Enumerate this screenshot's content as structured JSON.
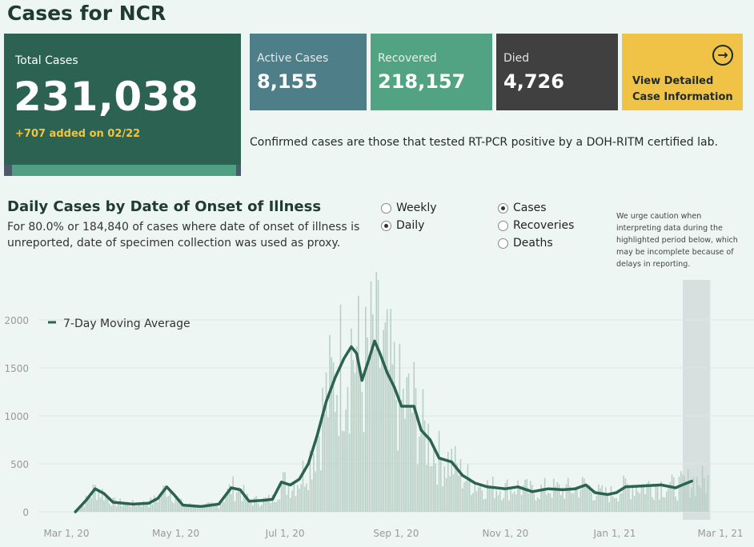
{
  "header": {
    "title": "Cases for NCR"
  },
  "total": {
    "label": "Total Cases",
    "value": "231,038",
    "added": "+707 added on 02/22"
  },
  "stats": {
    "active": {
      "label": "Active Cases",
      "value": "8,155"
    },
    "recovered": {
      "label": "Recovered",
      "value": "218,157"
    },
    "died": {
      "label": "Died",
      "value": "4,726"
    }
  },
  "detail_button": {
    "line1": "View Detailed",
    "line2": "Case Information",
    "icon": "arrow-right-circle-icon"
  },
  "note": "Confirmed cases are those that tested RT-PCR positive by a DOH-RITM certified lab.",
  "section": {
    "title": "Daily Cases by Date of Onset of Illness",
    "subtitle": "For 80.0% or 184,840 of cases where date of onset of illness is unreported, date of specimen collection was used as proxy."
  },
  "period_options": [
    {
      "label": "Weekly",
      "selected": false
    },
    {
      "label": "Daily",
      "selected": true
    }
  ],
  "metric_options": [
    {
      "label": "Cases",
      "selected": true
    },
    {
      "label": "Recoveries",
      "selected": false
    },
    {
      "label": "Deaths",
      "selected": false
    }
  ],
  "caution": "We urge caution when interpreting data during the highlighted period below, which may be incomplete because of delays in reporting.",
  "colors": {
    "bar": "#b9cfc6",
    "line": "#2b6251",
    "highlight": "#d6e0de"
  },
  "chart_data": {
    "type": "bar",
    "x_start": "2020-03-01",
    "x_end": "2021-02-22",
    "ylim": [
      0,
      2400
    ],
    "yticks": [
      0,
      500,
      1000,
      1500,
      2000
    ],
    "ytick_labels": [
      "0",
      "500",
      "1000",
      "1500",
      "2000"
    ],
    "xtick_labels": [
      "Mar 1, 20",
      "May 1, 20",
      "Jul 1, 20",
      "Sep 1, 20",
      "Nov 1, 20",
      "Jan 1, 21",
      "Mar 1, 21"
    ],
    "xtick_dates": [
      "2020-03-01",
      "2020-05-01",
      "2020-07-01",
      "2020-09-01",
      "2020-11-01",
      "2021-01-01",
      "2021-03-01"
    ],
    "legend": {
      "label": "7-Day Moving Average",
      "position": "top-left"
    },
    "highlight_range": [
      "2021-02-08",
      "2021-02-22"
    ],
    "grid": true,
    "moving_average": [
      {
        "date": "2020-03-06",
        "value": 0
      },
      {
        "date": "2020-03-12",
        "value": 120
      },
      {
        "date": "2020-03-17",
        "value": 240
      },
      {
        "date": "2020-03-22",
        "value": 190
      },
      {
        "date": "2020-03-27",
        "value": 100
      },
      {
        "date": "2020-04-07",
        "value": 80
      },
      {
        "date": "2020-04-16",
        "value": 90
      },
      {
        "date": "2020-04-21",
        "value": 140
      },
      {
        "date": "2020-04-26",
        "value": 260
      },
      {
        "date": "2020-04-30",
        "value": 180
      },
      {
        "date": "2020-05-05",
        "value": 70
      },
      {
        "date": "2020-05-15",
        "value": 55
      },
      {
        "date": "2020-05-25",
        "value": 80
      },
      {
        "date": "2020-06-01",
        "value": 250
      },
      {
        "date": "2020-06-06",
        "value": 230
      },
      {
        "date": "2020-06-11",
        "value": 110
      },
      {
        "date": "2020-06-19",
        "value": 120
      },
      {
        "date": "2020-06-24",
        "value": 130
      },
      {
        "date": "2020-06-29",
        "value": 310
      },
      {
        "date": "2020-07-04",
        "value": 280
      },
      {
        "date": "2020-07-09",
        "value": 340
      },
      {
        "date": "2020-07-14",
        "value": 500
      },
      {
        "date": "2020-07-19",
        "value": 800
      },
      {
        "date": "2020-07-24",
        "value": 1150
      },
      {
        "date": "2020-07-29",
        "value": 1400
      },
      {
        "date": "2020-08-03",
        "value": 1600
      },
      {
        "date": "2020-08-07",
        "value": 1720
      },
      {
        "date": "2020-08-10",
        "value": 1650
      },
      {
        "date": "2020-08-13",
        "value": 1370
      },
      {
        "date": "2020-08-17",
        "value": 1600
      },
      {
        "date": "2020-08-20",
        "value": 1780
      },
      {
        "date": "2020-08-23",
        "value": 1650
      },
      {
        "date": "2020-08-27",
        "value": 1450
      },
      {
        "date": "2020-08-31",
        "value": 1300
      },
      {
        "date": "2020-09-04",
        "value": 1100
      },
      {
        "date": "2020-09-11",
        "value": 1100
      },
      {
        "date": "2020-09-15",
        "value": 850
      },
      {
        "date": "2020-09-20",
        "value": 750
      },
      {
        "date": "2020-09-25",
        "value": 560
      },
      {
        "date": "2020-10-02",
        "value": 520
      },
      {
        "date": "2020-10-08",
        "value": 380
      },
      {
        "date": "2020-10-15",
        "value": 300
      },
      {
        "date": "2020-10-22",
        "value": 260
      },
      {
        "date": "2020-11-01",
        "value": 240
      },
      {
        "date": "2020-11-08",
        "value": 260
      },
      {
        "date": "2020-11-16",
        "value": 210
      },
      {
        "date": "2020-11-25",
        "value": 240
      },
      {
        "date": "2020-12-03",
        "value": 230
      },
      {
        "date": "2020-12-10",
        "value": 240
      },
      {
        "date": "2020-12-16",
        "value": 280
      },
      {
        "date": "2020-12-21",
        "value": 200
      },
      {
        "date": "2020-12-28",
        "value": 180
      },
      {
        "date": "2021-01-02",
        "value": 200
      },
      {
        "date": "2021-01-07",
        "value": 260
      },
      {
        "date": "2021-01-17",
        "value": 270
      },
      {
        "date": "2021-01-27",
        "value": 280
      },
      {
        "date": "2021-02-04",
        "value": 250
      },
      {
        "date": "2021-02-09",
        "value": 290
      },
      {
        "date": "2021-02-13",
        "value": 320
      }
    ],
    "daily_cases_note": "Daily cases are drawn as thin bars; peaks reached about 2330 in mid-August 2020."
  }
}
